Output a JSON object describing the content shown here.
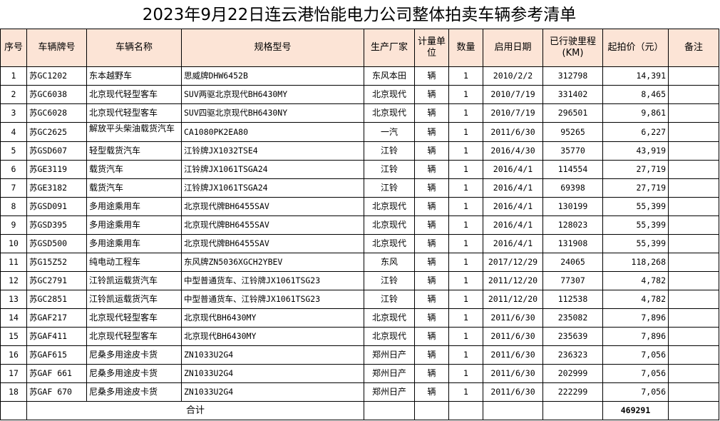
{
  "title": "2023年9月22日连云港怡能电力公司整体拍卖车辆参考清单",
  "headers": [
    "序号",
    "车辆牌号",
    "车辆名称",
    "规格型号",
    "生产厂家",
    "计量单位",
    "数量",
    "启用日期",
    "已行驶里程(KM)",
    "起拍价（元）",
    "备注"
  ],
  "rows": [
    [
      "1",
      "苏GC1202",
      "东本越野车",
      "思威牌DHW6452B",
      "东风本田",
      "辆",
      "1",
      "2010/2/2",
      "312798",
      "14,391",
      ""
    ],
    [
      "2",
      "苏GC6038",
      "北京现代轻型客车",
      "SUV两驱北京现代BH6430MY",
      "北京现代",
      "辆",
      "1",
      "2010/7/19",
      "331402",
      "8,465",
      ""
    ],
    [
      "3",
      "苏GC6028",
      "北京现代轻型客车",
      "SUV四驱北京现代BH6430NY",
      "北京现代",
      "辆",
      "1",
      "2010/7/19",
      "296501",
      "9,861",
      ""
    ],
    [
      "4",
      "苏GC2625",
      "解放平头柴油载货汽车",
      "CA1080PK2EA80",
      "一汽",
      "辆",
      "1",
      "2011/6/30",
      "95265",
      "6,227",
      ""
    ],
    [
      "5",
      "苏GSD607",
      "轻型载货汽车",
      "江铃牌JX1032TSE4",
      "江铃",
      "辆",
      "1",
      "2016/4/30",
      "35770",
      "43,919",
      ""
    ],
    [
      "6",
      "苏GE3119",
      "载货汽车",
      "江铃牌JX1061TSGA24",
      "江铃",
      "辆",
      "1",
      "2016/4/1",
      "114554",
      "27,719",
      ""
    ],
    [
      "7",
      "苏GE3182",
      "载货汽车",
      "江铃牌JX1061TSGA24",
      "江铃",
      "辆",
      "1",
      "2016/4/1",
      "69398",
      "27,719",
      ""
    ],
    [
      "8",
      "苏GSD091",
      "多用途乘用车",
      "北京现代牌BH6455SAV",
      "北京现代",
      "辆",
      "1",
      "2016/4/1",
      "130199",
      "55,399",
      ""
    ],
    [
      "9",
      "苏GSD395",
      "多用途乘用车",
      "北京现代牌BH6455SAV",
      "北京现代",
      "辆",
      "1",
      "2016/4/1",
      "128023",
      "55,399",
      ""
    ],
    [
      "10",
      "苏GSD500",
      "多用途乘用车",
      "北京现代牌BH6455SAV",
      "北京现代",
      "辆",
      "1",
      "2016/4/1",
      "131908",
      "55,399",
      ""
    ],
    [
      "11",
      "苏G15Z52",
      "纯电动工程车",
      "东风牌ZN5036XGCH2YBEV",
      "东风",
      "辆",
      "1",
      "2017/12/29",
      "24065",
      "118,268",
      ""
    ],
    [
      "12",
      "苏GC2791",
      "江铃凯运载货汽车",
      "中型普通货车、江铃牌JX1061TSG23",
      "江铃",
      "辆",
      "1",
      "2011/12/20",
      "77307",
      "4,782",
      ""
    ],
    [
      "13",
      "苏GC2851",
      "江铃凯运载货汽车",
      "中型普通货车、江铃牌JX1061TSG23",
      "江铃",
      "辆",
      "1",
      "2011/12/20",
      "112538",
      "4,782",
      ""
    ],
    [
      "14",
      "苏GAF217",
      "北京现代轻型客车",
      "北京现代BH6430MY",
      "北京现代",
      "辆",
      "1",
      "2011/6/30",
      "235082",
      "7,896",
      ""
    ],
    [
      "15",
      "苏GAF411",
      "北京现代轻型客车",
      "北京现代BH6430MY",
      "北京现代",
      "辆",
      "1",
      "2011/6/30",
      "235639",
      "7,896",
      ""
    ],
    [
      "16",
      "苏GAF615",
      "尼桑多用途皮卡货",
      "ZN1033U2G4",
      "郑州日产",
      "辆",
      "1",
      "2011/6/30",
      "236323",
      "7,056",
      ""
    ],
    [
      "17",
      "苏GAF 661",
      "尼桑多用途皮卡货",
      "ZN1033U2G4",
      "郑州日产",
      "辆",
      "1",
      "2011/6/30",
      "202999",
      "7,056",
      ""
    ],
    [
      "18",
      "苏GAF 670",
      "尼桑多用途皮卡货",
      "ZN1033U2G4",
      "郑州日产",
      "辆",
      "1",
      "2011/6/30",
      "222299",
      "7,056",
      ""
    ]
  ],
  "total": {
    "label": "合计",
    "value": "469291"
  },
  "colors": {
    "header_bg": "#fce4d6"
  }
}
